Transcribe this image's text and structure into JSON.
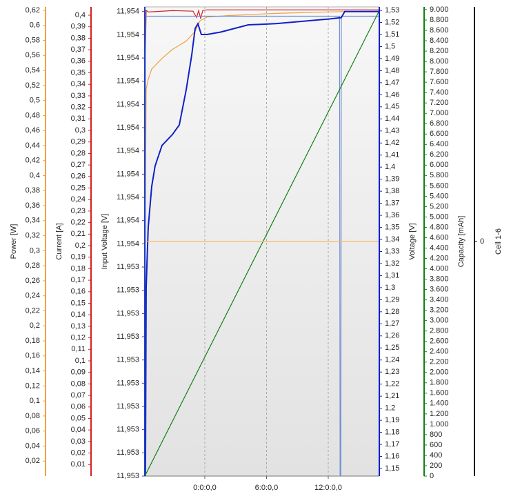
{
  "chart_data": {
    "type": "line",
    "xlim": [
      -5.83,
      16.96
    ],
    "xticks": [
      {
        "value": 0,
        "label": "0:0:0,0"
      },
      {
        "value": 6,
        "label": "6:0:0,0"
      },
      {
        "value": 12,
        "label": "12:0:0,0"
      }
    ],
    "axes": [
      {
        "label": "Power [W]",
        "color": "#f0a040",
        "ylim": [
          0,
          0.6246
        ],
        "yticks": [
          {
            "value": 0.02,
            "label": "0,02"
          },
          {
            "value": 0.04,
            "label": "0,04"
          },
          {
            "value": 0.06,
            "label": "0,06"
          },
          {
            "value": 0.08,
            "label": "0,08"
          },
          {
            "value": 0.1,
            "label": "0,1"
          },
          {
            "value": 0.12,
            "label": "0,12"
          },
          {
            "value": 0.14,
            "label": "0,14"
          },
          {
            "value": 0.16,
            "label": "0,16"
          },
          {
            "value": 0.18,
            "label": "0,18"
          },
          {
            "value": 0.2,
            "label": "0,2"
          },
          {
            "value": 0.22,
            "label": "0,22"
          },
          {
            "value": 0.24,
            "label": "0,24"
          },
          {
            "value": 0.26,
            "label": "0,26"
          },
          {
            "value": 0.28,
            "label": "0,28"
          },
          {
            "value": 0.3,
            "label": "0,3"
          },
          {
            "value": 0.32,
            "label": "0,32"
          },
          {
            "value": 0.34,
            "label": "0,34"
          },
          {
            "value": 0.36,
            "label": "0,36"
          },
          {
            "value": 0.38,
            "label": "0,38"
          },
          {
            "value": 0.4,
            "label": "0,4"
          },
          {
            "value": 0.42,
            "label": "0,42"
          },
          {
            "value": 0.44,
            "label": "0,44"
          },
          {
            "value": 0.46,
            "label": "0,46"
          },
          {
            "value": 0.48,
            "label": "0,48"
          },
          {
            "value": 0.5,
            "label": "0,5"
          },
          {
            "value": 0.52,
            "label": "0,52"
          },
          {
            "value": 0.54,
            "label": "0,54"
          },
          {
            "value": 0.56,
            "label": "0,56"
          },
          {
            "value": 0.58,
            "label": "0,58"
          },
          {
            "value": 0.6,
            "label": "0,6"
          },
          {
            "value": 0.62,
            "label": "0,62"
          }
        ],
        "series": [
          {
            "color": "#f0a040",
            "x": [
              -5.77,
              -5.73,
              -5.7,
              -5.5,
              -5.16,
              -4.16,
              -3.15,
              -1.81,
              -0.94,
              -0.47,
              0.2,
              2.21,
              6.91,
              12.27,
              16.96
            ],
            "values": [
              0.368,
              0.45,
              0.515,
              0.528,
              0.542,
              0.556,
              0.568,
              0.579,
              0.592,
              0.606,
              0.611,
              0.613,
              0.616,
              0.618,
              0.619
            ]
          }
        ]
      },
      {
        "label": "Current [A]",
        "color": "#d42020",
        "ylim": [
          0,
          0.4072
        ],
        "yticks": [
          {
            "value": 0.01,
            "label": "0,01"
          },
          {
            "value": 0.02,
            "label": "0,02"
          },
          {
            "value": 0.03,
            "label": "0,03"
          },
          {
            "value": 0.04,
            "label": "0,04"
          },
          {
            "value": 0.05,
            "label": "0,05"
          },
          {
            "value": 0.06,
            "label": "0,06"
          },
          {
            "value": 0.07,
            "label": "0,07"
          },
          {
            "value": 0.08,
            "label": "0,08"
          },
          {
            "value": 0.09,
            "label": "0,09"
          },
          {
            "value": 0.1,
            "label": "0,1"
          },
          {
            "value": 0.11,
            "label": "0,11"
          },
          {
            "value": 0.12,
            "label": "0,12"
          },
          {
            "value": 0.13,
            "label": "0,13"
          },
          {
            "value": 0.14,
            "label": "0,14"
          },
          {
            "value": 0.15,
            "label": "0,15"
          },
          {
            "value": 0.16,
            "label": "0,16"
          },
          {
            "value": 0.17,
            "label": "0,17"
          },
          {
            "value": 0.18,
            "label": "0,18"
          },
          {
            "value": 0.19,
            "label": "0,19"
          },
          {
            "value": 0.2,
            "label": "0,2"
          },
          {
            "value": 0.21,
            "label": "0,21"
          },
          {
            "value": 0.22,
            "label": "0,22"
          },
          {
            "value": 0.23,
            "label": "0,23"
          },
          {
            "value": 0.24,
            "label": "0,24"
          },
          {
            "value": 0.25,
            "label": "0,25"
          },
          {
            "value": 0.26,
            "label": "0,26"
          },
          {
            "value": 0.27,
            "label": "0,27"
          },
          {
            "value": 0.28,
            "label": "0,28"
          },
          {
            "value": 0.29,
            "label": "0,29"
          },
          {
            "value": 0.3,
            "label": "0,3"
          },
          {
            "value": 0.31,
            "label": "0,31"
          },
          {
            "value": 0.32,
            "label": "0,32"
          },
          {
            "value": 0.33,
            "label": "0,33"
          },
          {
            "value": 0.34,
            "label": "0,34"
          },
          {
            "value": 0.35,
            "label": "0,35"
          },
          {
            "value": 0.36,
            "label": "0,36"
          },
          {
            "value": 0.37,
            "label": "0,37"
          },
          {
            "value": 0.38,
            "label": "0,38"
          },
          {
            "value": 0.39,
            "label": "0,39"
          },
          {
            "value": 0.4,
            "label": "0,4"
          }
        ],
        "series": [
          {
            "color": "#d42020",
            "x": [
              -5.77,
              -5.7,
              -5.5,
              -3.15,
              -1.14,
              -0.8,
              -0.6,
              -0.4,
              -0.2,
              0.2,
              16.96
            ],
            "values": [
              0.368,
              0.4042,
              0.4028,
              0.404,
              0.4035,
              0.398,
              0.404,
              0.397,
              0.404,
              0.4046,
              0.4046
            ]
          }
        ]
      },
      {
        "label": "Input Voltage [V]",
        "color": "#2040c0",
        "ylim": [
          11.953,
          11.95401
        ],
        "yticks": [
          {
            "value": 11.953,
            "label": "11,953"
          },
          {
            "value": 11.95305,
            "label": "11,953"
          },
          {
            "value": 11.9531,
            "label": "11,953"
          },
          {
            "value": 11.95315,
            "label": "11,953"
          },
          {
            "value": 11.9532,
            "label": "11,953"
          },
          {
            "value": 11.95325,
            "label": "11,953"
          },
          {
            "value": 11.9533,
            "label": "11,953"
          },
          {
            "value": 11.95335,
            "label": "11,953"
          },
          {
            "value": 11.9534,
            "label": "11,953"
          },
          {
            "value": 11.95345,
            "label": "11,953"
          },
          {
            "value": 11.9535,
            "label": "11,954"
          },
          {
            "value": 11.95355,
            "label": "11,954"
          },
          {
            "value": 11.9536,
            "label": "11,954"
          },
          {
            "value": 11.95365,
            "label": "11,954"
          },
          {
            "value": 11.9537,
            "label": "11,954"
          },
          {
            "value": 11.95375,
            "label": "11,954"
          },
          {
            "value": 11.9538,
            "label": "11,954"
          },
          {
            "value": 11.95385,
            "label": "11,954"
          },
          {
            "value": 11.9539,
            "label": "11,954"
          },
          {
            "value": 11.95395,
            "label": "11,954"
          },
          {
            "value": 11.954,
            "label": "11,954"
          }
        ],
        "series": [
          {
            "color": "#7090d0",
            "x": [
              -5.8,
              -5.77,
              13.1,
              13.15,
              13.22,
              13.27,
              16.96
            ],
            "values": [
              11.953,
              11.95399,
              11.95399,
              11.953,
              11.953,
              11.95399,
              11.95399
            ]
          }
        ]
      },
      {
        "label": "Voltage [V]",
        "color": "#1020c8",
        "ylim": [
          1.1437,
          1.5329
        ],
        "yticks": [
          {
            "value": 1.15,
            "label": "1,15"
          },
          {
            "value": 1.16,
            "label": "1,16"
          },
          {
            "value": 1.17,
            "label": "1,17"
          },
          {
            "value": 1.18,
            "label": "1,18"
          },
          {
            "value": 1.19,
            "label": "1,19"
          },
          {
            "value": 1.2,
            "label": "1,2"
          },
          {
            "value": 1.21,
            "label": "1,21"
          },
          {
            "value": 1.22,
            "label": "1,22"
          },
          {
            "value": 1.23,
            "label": "1,23"
          },
          {
            "value": 1.24,
            "label": "1,24"
          },
          {
            "value": 1.25,
            "label": "1,25"
          },
          {
            "value": 1.26,
            "label": "1,26"
          },
          {
            "value": 1.27,
            "label": "1,27"
          },
          {
            "value": 1.28,
            "label": "1,28"
          },
          {
            "value": 1.29,
            "label": "1,29"
          },
          {
            "value": 1.3,
            "label": "1,3"
          },
          {
            "value": 1.31,
            "label": "1,31"
          },
          {
            "value": 1.32,
            "label": "1,32"
          },
          {
            "value": 1.33,
            "label": "1,33"
          },
          {
            "value": 1.34,
            "label": "1,34"
          },
          {
            "value": 1.35,
            "label": "1,35"
          },
          {
            "value": 1.36,
            "label": "1,36"
          },
          {
            "value": 1.37,
            "label": "1,37"
          },
          {
            "value": 1.38,
            "label": "1,38"
          },
          {
            "value": 1.39,
            "label": "1,39"
          },
          {
            "value": 1.4,
            "label": "1,4"
          },
          {
            "value": 1.41,
            "label": "1,41"
          },
          {
            "value": 1.42,
            "label": "1,42"
          },
          {
            "value": 1.43,
            "label": "1,43"
          },
          {
            "value": 1.44,
            "label": "1,44"
          },
          {
            "value": 1.45,
            "label": "1,45"
          },
          {
            "value": 1.46,
            "label": "1,46"
          },
          {
            "value": 1.47,
            "label": "1,47"
          },
          {
            "value": 1.48,
            "label": "1,48"
          },
          {
            "value": 1.49,
            "label": "1,49"
          },
          {
            "value": 1.5,
            "label": "1,5"
          },
          {
            "value": 1.51,
            "label": "1,51"
          },
          {
            "value": 1.52,
            "label": "1,52"
          },
          {
            "value": 1.53,
            "label": "1,53"
          }
        ],
        "series": [
          {
            "color": "#1020c8",
            "x": [
              -5.77,
              -5.7,
              -5.5,
              -5.16,
              -4.83,
              -4.16,
              -3.15,
              -2.48,
              -1.81,
              -1.27,
              -0.94,
              -0.67,
              -0.34,
              0.2,
              1.54,
              2.88,
              4.22,
              6.91,
              9.59,
              12.27,
              13.27,
              13.6,
              16.96
            ],
            "values": [
              1.144,
              1.3,
              1.35,
              1.384,
              1.401,
              1.418,
              1.427,
              1.435,
              1.464,
              1.493,
              1.515,
              1.519,
              1.51,
              1.51,
              1.512,
              1.515,
              1.518,
              1.519,
              1.521,
              1.523,
              1.524,
              1.529,
              1.529
            ]
          }
        ]
      },
      {
        "label": "Capacity [mAh]",
        "color": "#108010",
        "ylim": [
          0,
          9053
        ],
        "yticks": [
          0,
          200,
          400,
          600,
          800,
          {
            "value": 1000,
            "label": "1.000"
          },
          {
            "value": 1200,
            "label": "1.200"
          },
          {
            "value": 1400,
            "label": "1.400"
          },
          {
            "value": 1600,
            "label": "1.600"
          },
          {
            "value": 1800,
            "label": "1.800"
          },
          {
            "value": 2000,
            "label": "2.000"
          },
          {
            "value": 2200,
            "label": "2.200"
          },
          {
            "value": 2400,
            "label": "2.400"
          },
          {
            "value": 2600,
            "label": "2.600"
          },
          {
            "value": 2800,
            "label": "2.800"
          },
          {
            "value": 3000,
            "label": "3.000"
          },
          {
            "value": 3200,
            "label": "3.200"
          },
          {
            "value": 3400,
            "label": "3.400"
          },
          {
            "value": 3600,
            "label": "3.600"
          },
          {
            "value": 3800,
            "label": "3.800"
          },
          {
            "value": 4000,
            "label": "4.000"
          },
          {
            "value": 4200,
            "label": "4.200"
          },
          {
            "value": 4400,
            "label": "4.400"
          },
          {
            "value": 4600,
            "label": "4.600"
          },
          {
            "value": 4800,
            "label": "4.800"
          },
          {
            "value": 5000,
            "label": "5.000"
          },
          {
            "value": 5200,
            "label": "5.200"
          },
          {
            "value": 5400,
            "label": "5.400"
          },
          {
            "value": 5600,
            "label": "5.600"
          },
          {
            "value": 5800,
            "label": "5.800"
          },
          {
            "value": 6000,
            "label": "6.000"
          },
          {
            "value": 6200,
            "label": "6.200"
          },
          {
            "value": 6400,
            "label": "6.400"
          },
          {
            "value": 6600,
            "label": "6.600"
          },
          {
            "value": 6800,
            "label": "6.800"
          },
          {
            "value": 7000,
            "label": "7.000"
          },
          {
            "value": 7200,
            "label": "7.200"
          },
          {
            "value": 7400,
            "label": "7.400"
          },
          {
            "value": 7600,
            "label": "7.600"
          },
          {
            "value": 7800,
            "label": "7.800"
          },
          {
            "value": 8000,
            "label": "8.000"
          },
          {
            "value": 8200,
            "label": "8.200"
          },
          {
            "value": 8400,
            "label": "8.400"
          },
          {
            "value": 8600,
            "label": "8.600"
          },
          {
            "value": 8800,
            "label": "8.800"
          },
          {
            "value": 9000,
            "label": "9.000"
          }
        ],
        "series": [
          {
            "color": "#108010",
            "x": [
              -5.83,
              16.96
            ],
            "values": [
              0,
              8980
            ]
          }
        ]
      },
      {
        "label": "Cell 1-6",
        "color": "#000000",
        "ylim": [
          -1,
          1
        ],
        "yticks": [
          0
        ],
        "series": [
          {
            "color": "#f5b860",
            "x": [
              -5.83,
              16.96
            ],
            "values": [
              0,
              0
            ]
          }
        ]
      }
    ]
  }
}
